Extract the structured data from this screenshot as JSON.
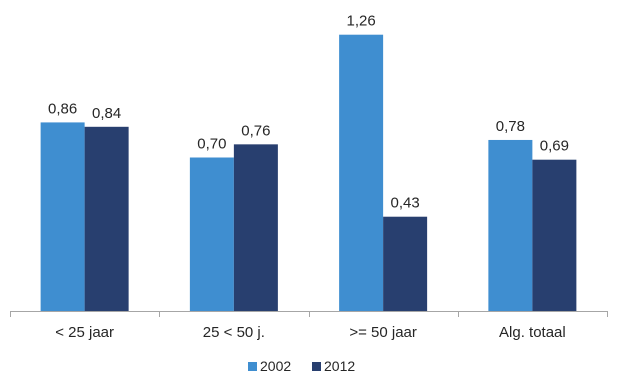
{
  "chart_data": {
    "type": "bar",
    "categories": [
      "< 25 jaar",
      "25 < 50 j.",
      ">= 50 jaar",
      "Alg. totaal"
    ],
    "series": [
      {
        "name": "2002",
        "values": [
          0.86,
          0.7,
          1.26,
          0.78
        ],
        "labels": [
          "0,86",
          "0,70",
          "1,26",
          "0,78"
        ]
      },
      {
        "name": "2012",
        "values": [
          0.84,
          0.76,
          0.43,
          0.69
        ],
        "labels": [
          "0,84",
          "0,76",
          "0,43",
          "0,69"
        ]
      }
    ],
    "ylim": [
      0,
      1.4
    ],
    "grid": false,
    "legend_position": "bottom",
    "title": "",
    "xlabel": "",
    "ylabel": ""
  },
  "colors": {
    "series_2002": "#3F8ED0",
    "series_2012": "#283F6F",
    "axis": "#A6A6A6",
    "text": "#262626"
  }
}
